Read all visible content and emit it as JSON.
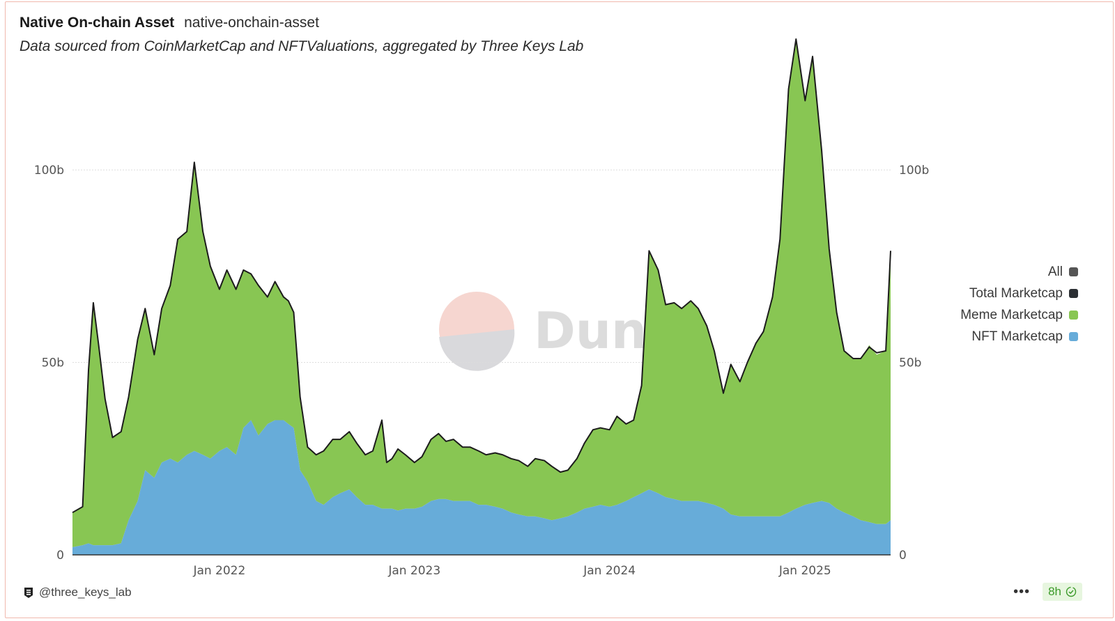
{
  "header": {
    "title": "Native On-chain Asset",
    "slug": "native-onchain-asset",
    "subtitle": "Data sourced from CoinMarketCap and NFTValuations, aggregated by Three Keys Lab"
  },
  "watermark": {
    "text": "Dune",
    "icon": "dune-logo-icon"
  },
  "footer": {
    "author": "@three_keys_lab",
    "author_icon": "three-keys-lab-logo-icon",
    "menu_icon": "more-dots-icon",
    "refresh_label": "8h",
    "refresh_icon": "check-circle-icon"
  },
  "legend": [
    {
      "label": "All",
      "color": "#555555"
    },
    {
      "label": "Total Marketcap",
      "color": "#2b2f33"
    },
    {
      "label": "Meme Marketcap",
      "color": "#88c653"
    },
    {
      "label": "NFT Marketcap",
      "color": "#67acd9"
    }
  ],
  "chart_data": {
    "type": "area",
    "stacked": true,
    "x_ticks": [
      "Jan 2022",
      "Jan 2023",
      "Jan 2024",
      "Jan 2025"
    ],
    "y_ticks_left": [
      "0",
      "50b",
      "100b"
    ],
    "y_ticks_right": [
      "0",
      "50b",
      "100b"
    ],
    "y_unit": "USD billions",
    "ylim": [
      0,
      140
    ],
    "xlim": [
      "2021-04-01",
      "2025-06-10"
    ],
    "grid": true,
    "legend_position": "right",
    "x": [
      "2021-04-01",
      "2021-04-20",
      "2021-05-01",
      "2021-05-10",
      "2021-05-20",
      "2021-06-01",
      "2021-06-15",
      "2021-07-01",
      "2021-07-15",
      "2021-08-01",
      "2021-08-15",
      "2021-09-01",
      "2021-09-15",
      "2021-10-01",
      "2021-10-15",
      "2021-11-01",
      "2021-11-15",
      "2021-12-01",
      "2021-12-15",
      "2022-01-01",
      "2022-01-15",
      "2022-02-01",
      "2022-02-15",
      "2022-03-01",
      "2022-03-15",
      "2022-04-01",
      "2022-04-15",
      "2022-05-01",
      "2022-05-10",
      "2022-05-20",
      "2022-06-01",
      "2022-06-15",
      "2022-07-01",
      "2022-07-15",
      "2022-08-01",
      "2022-08-15",
      "2022-09-01",
      "2022-09-15",
      "2022-10-01",
      "2022-10-15",
      "2022-11-01",
      "2022-11-10",
      "2022-11-20",
      "2022-12-01",
      "2022-12-15",
      "2023-01-01",
      "2023-01-15",
      "2023-02-01",
      "2023-02-15",
      "2023-03-01",
      "2023-03-15",
      "2023-04-01",
      "2023-04-15",
      "2023-05-01",
      "2023-05-15",
      "2023-06-01",
      "2023-06-15",
      "2023-07-01",
      "2023-07-15",
      "2023-08-01",
      "2023-08-15",
      "2023-09-01",
      "2023-09-15",
      "2023-10-01",
      "2023-10-15",
      "2023-11-01",
      "2023-11-15",
      "2023-12-01",
      "2023-12-15",
      "2024-01-01",
      "2024-01-15",
      "2024-02-01",
      "2024-02-15",
      "2024-03-01",
      "2024-03-15",
      "2024-04-01",
      "2024-04-15",
      "2024-05-01",
      "2024-05-15",
      "2024-06-01",
      "2024-06-15",
      "2024-07-01",
      "2024-07-15",
      "2024-08-01",
      "2024-08-15",
      "2024-09-01",
      "2024-09-15",
      "2024-10-01",
      "2024-10-15",
      "2024-11-01",
      "2024-11-15",
      "2024-12-01",
      "2024-12-15",
      "2025-01-01",
      "2025-01-15",
      "2025-02-01",
      "2025-02-15",
      "2025-03-01",
      "2025-03-15",
      "2025-04-01",
      "2025-04-15",
      "2025-05-01",
      "2025-05-15",
      "2025-06-01",
      "2025-06-10"
    ],
    "series": [
      {
        "name": "NFT Marketcap",
        "values": [
          2,
          2.5,
          3,
          2.5,
          2.5,
          2.5,
          2.5,
          3,
          9,
          14,
          22,
          20,
          24,
          25,
          24,
          26,
          27,
          26,
          25,
          27,
          28,
          26,
          33,
          35,
          31,
          34,
          35,
          35,
          34,
          33,
          22,
          19,
          14,
          13,
          15,
          16,
          17,
          15,
          13,
          13,
          12,
          12,
          12,
          11.5,
          12,
          12,
          12.5,
          14,
          14.5,
          14.5,
          14,
          14,
          14,
          13,
          13,
          12.5,
          12,
          11,
          10.5,
          10,
          10,
          9.5,
          9,
          9.5,
          10,
          11,
          12,
          12.5,
          13,
          12.5,
          13,
          14,
          15,
          16,
          17,
          16,
          15,
          14.5,
          14,
          14,
          14,
          13.5,
          13,
          12,
          10.5,
          10,
          10,
          10,
          10,
          10,
          10,
          11,
          12,
          13,
          13.5,
          14,
          13.5,
          12,
          11,
          10,
          9,
          8.5,
          8,
          8,
          9
        ]
      },
      {
        "name": "Meme Marketcap",
        "values": [
          9,
          10,
          45,
          63,
          52,
          38,
          28,
          29,
          32,
          42,
          42,
          32,
          40,
          45,
          58,
          58,
          75,
          58,
          50,
          42,
          46,
          43,
          41,
          38,
          39,
          33,
          36,
          32,
          32,
          30,
          19,
          9,
          12,
          14,
          15,
          14,
          15,
          14,
          13,
          14,
          23,
          12,
          13,
          16,
          14,
          12,
          13,
          16,
          17,
          15,
          16,
          14,
          14,
          14,
          13,
          14,
          14,
          14,
          14,
          13,
          15,
          15,
          14,
          12,
          12,
          14,
          17,
          20,
          20,
          20,
          23,
          20,
          20,
          28,
          62,
          58,
          50,
          51,
          50,
          52,
          50,
          46,
          40,
          30,
          39,
          35,
          40,
          45,
          48,
          57,
          72,
          110,
          122,
          105,
          116,
          91,
          66,
          51,
          42,
          41,
          42,
          46,
          44,
          45,
          70
        ]
      },
      {
        "name": "Total Marketcap",
        "values": [
          11,
          12.5,
          48,
          65.5,
          54.5,
          40.5,
          30.5,
          32,
          41,
          56,
          64,
          52,
          64,
          70,
          82,
          84,
          102,
          84,
          75,
          69,
          74,
          69,
          74,
          73,
          70,
          67,
          71,
          67,
          66,
          63,
          41,
          28,
          26,
          27,
          30,
          30,
          32,
          29,
          26,
          27,
          35,
          24,
          25,
          27.5,
          26,
          24,
          25.5,
          30,
          31.5,
          29.5,
          30,
          28,
          28,
          27,
          26,
          26.5,
          26,
          25,
          24.5,
          23,
          25,
          24.5,
          23,
          21.5,
          22,
          25,
          29,
          32.5,
          33,
          32.5,
          36,
          34,
          35,
          44,
          79,
          74,
          65,
          65.5,
          64,
          66,
          64,
          59.5,
          53,
          42,
          49.5,
          45,
          50,
          55,
          58,
          67,
          82,
          121,
          134,
          118,
          129.5,
          105,
          79.5,
          63,
          53,
          51,
          51,
          54,
          52.5,
          53,
          79
        ]
      }
    ]
  }
}
